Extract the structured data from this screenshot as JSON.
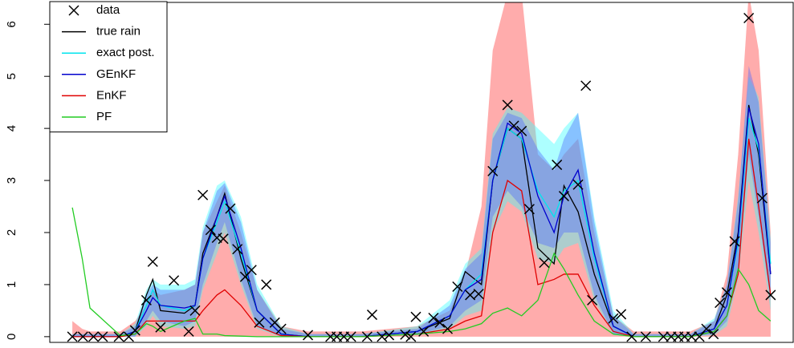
{
  "chart_data": {
    "type": "line",
    "xlim": [
      -2.2,
      103.2
    ],
    "ylim": [
      -0.11,
      6.42
    ],
    "yticks": [
      0,
      1,
      2,
      3,
      4,
      5,
      6
    ],
    "legend": "topleft",
    "x": [
      1,
      2.4,
      3.5,
      7.8,
      9.9,
      11.5,
      12.4,
      13.5,
      16.9,
      18.4,
      19.5,
      21.5,
      22.6,
      24.9,
      27.2,
      30.6,
      34.4,
      42,
      49.9,
      54.5,
      56.7,
      59,
      60.6,
      62.7,
      64.7,
      67,
      69.3,
      70.7,
      72.7,
      75,
      77.7,
      80.6,
      88.6,
      92,
      93.8,
      95.4,
      96.9,
      98.3,
      100
    ],
    "bands": [
      {
        "color": "#ff8080",
        "opacity": 0.65,
        "lower": [
          0,
          0,
          0,
          0,
          0,
          0,
          0,
          0,
          0,
          0,
          0,
          0,
          0,
          0,
          0,
          0,
          0,
          0,
          0,
          0,
          0,
          0,
          0,
          0,
          0,
          0,
          0,
          0,
          0,
          0,
          0,
          0,
          0,
          0,
          0,
          0,
          0,
          0,
          0
        ],
        "upper": [
          0.3,
          0.15,
          0.1,
          0.1,
          0.3,
          0.6,
          0.9,
          0.8,
          0.9,
          1.0,
          2.0,
          2.6,
          2.9,
          2.0,
          0.9,
          0.2,
          0.1,
          0.1,
          0.2,
          0.5,
          1.2,
          2.5,
          5.5,
          6.6,
          6.6,
          3.5,
          3.2,
          3.5,
          3.8,
          2.0,
          0.4,
          0.1,
          0.1,
          0.3,
          1.2,
          3.5,
          6.6,
          5.5,
          2.0
        ]
      },
      {
        "color": "#33ffff",
        "opacity": 0.4,
        "lower": [
          0,
          0,
          0,
          0,
          0,
          0.2,
          0.4,
          0.2,
          0.15,
          0.2,
          0.9,
          1.6,
          2.0,
          1.0,
          0.15,
          0,
          0,
          0,
          0.03,
          0.15,
          0.4,
          0.5,
          2.0,
          2.6,
          2.4,
          1.5,
          1.4,
          1.7,
          1.8,
          0.7,
          0.03,
          0,
          0,
          0.03,
          0.2,
          1.1,
          3.0,
          2.0,
          0.5
        ],
        "upper": [
          0.05,
          0.05,
          0.05,
          0.05,
          0.25,
          0.9,
          1.1,
          1.0,
          1.0,
          1.1,
          2.1,
          2.9,
          3.0,
          2.3,
          1.0,
          0.2,
          0.05,
          0.05,
          0.2,
          0.7,
          1.4,
          1.7,
          3.9,
          4.4,
          4.3,
          4.0,
          3.7,
          4.0,
          4.3,
          2.3,
          0.5,
          0.05,
          0.05,
          0.35,
          1.0,
          2.7,
          5.0,
          4.6,
          1.9
        ]
      },
      {
        "color": "#4d66ff",
        "opacity": 0.4,
        "lower": [
          0,
          0,
          0,
          0,
          0,
          0.3,
          0.5,
          0.3,
          0.2,
          0.3,
          1.0,
          1.8,
          2.2,
          1.1,
          0.2,
          0,
          0,
          0,
          0.05,
          0.2,
          0.5,
          0.7,
          2.3,
          2.8,
          2.5,
          1.8,
          1.7,
          2.0,
          2.0,
          0.8,
          0.05,
          0,
          0,
          0.05,
          0.3,
          1.3,
          3.5,
          2.3,
          0.7
        ],
        "upper": [
          0.05,
          0.05,
          0.05,
          0.05,
          0.2,
          0.8,
          1.0,
          0.9,
          0.9,
          1.0,
          2.0,
          2.8,
          2.95,
          2.2,
          0.9,
          0.15,
          0.05,
          0.05,
          0.15,
          0.6,
          1.3,
          1.6,
          3.8,
          4.3,
          4.2,
          3.6,
          3.2,
          3.8,
          4.3,
          2.2,
          0.4,
          0.05,
          0.05,
          0.3,
          1.0,
          2.6,
          5.2,
          4.5,
          1.8
        ]
      }
    ],
    "series": [
      {
        "name": "data",
        "marker": "x",
        "color": "#000000",
        "x": [
          1,
          2.5,
          4,
          5.3,
          7.6,
          9,
          9.9,
          11.5,
          12.4,
          13.5,
          15.4,
          17.5,
          18.4,
          19.5,
          20.6,
          21.5,
          22.4,
          23.4,
          24.4,
          25.5,
          26.4,
          27.5,
          28.5,
          29.7,
          30.6,
          34.4,
          37.6,
          38.5,
          39.5,
          40.5,
          42.8,
          43.5,
          44.9,
          45.9,
          48.2,
          49,
          49.7,
          50.8,
          52.2,
          53.1,
          54.2,
          55.6,
          57.4,
          58.6,
          60.6,
          62.7,
          63.6,
          64.7,
          65.8,
          67.9,
          69.7,
          70.7,
          72.7,
          73.8,
          74.7,
          77.7,
          78.8,
          80.3,
          82.3,
          84.8,
          85.9,
          86.9,
          87.8,
          88.8,
          89.9,
          90.9,
          91.9,
          92.8,
          93.8,
          94.9,
          96.9,
          98.8,
          100
        ],
        "values": [
          0,
          0,
          0,
          0,
          0,
          0,
          0.12,
          0.7,
          1.44,
          0.18,
          1.08,
          0.1,
          0.5,
          2.72,
          2.05,
          1.9,
          1.88,
          2.46,
          1.68,
          1.15,
          1.28,
          0.27,
          1.0,
          0.27,
          0.15,
          0.03,
          0,
          0,
          0,
          0,
          0,
          0.42,
          0,
          0.03,
          0.04,
          0,
          0.38,
          0.1,
          0.36,
          0.27,
          0.15,
          0.96,
          0.8,
          0.82,
          3.18,
          4.45,
          4.05,
          3.95,
          2.45,
          1.42,
          3.3,
          2.7,
          2.92,
          4.82,
          0.7,
          0.35,
          0.43,
          0,
          0,
          0,
          0,
          0,
          0,
          0,
          0,
          0.15,
          0.05,
          0.65,
          0.85,
          1.83,
          6.12,
          2.66,
          0.8
        ]
      },
      {
        "name": "true rain",
        "color": "#000000",
        "values": [
          0,
          0,
          0,
          0,
          0.1,
          0.8,
          1.1,
          0.5,
          0.45,
          0.6,
          1.6,
          2.3,
          2.75,
          1.5,
          0.5,
          0.05,
          0,
          0,
          0.1,
          0.35,
          1.25,
          1.0,
          3.0,
          4.0,
          3.8,
          1.7,
          1.4,
          2.9,
          2.4,
          1.2,
          0.2,
          0,
          0,
          0.15,
          0.8,
          2.0,
          4.45,
          3.5,
          1.2
        ]
      },
      {
        "name": "exact post.",
        "color": "#00e5ee",
        "values": [
          0,
          0,
          0,
          0,
          0.1,
          0.6,
          0.9,
          0.6,
          0.5,
          0.6,
          1.5,
          2.2,
          2.6,
          1.6,
          0.5,
          0.05,
          0,
          0,
          0.1,
          0.4,
          0.9,
          1.2,
          3.0,
          4.0,
          3.8,
          2.8,
          2.3,
          2.8,
          3.0,
          1.5,
          0.2,
          0,
          0,
          0.15,
          0.6,
          1.8,
          4.2,
          3.6,
          1.4
        ]
      },
      {
        "name": "GEnKF",
        "color": "#0000cd",
        "values": [
          0,
          0,
          0,
          0,
          0.1,
          0.5,
          0.75,
          0.6,
          0.55,
          0.6,
          1.5,
          2.3,
          2.7,
          1.7,
          0.5,
          0.05,
          0,
          0,
          0.1,
          0.4,
          0.9,
          1.1,
          3.0,
          4.1,
          3.9,
          2.7,
          2.0,
          2.7,
          3.2,
          1.6,
          0.2,
          0,
          0,
          0.15,
          0.6,
          1.9,
          4.4,
          3.7,
          1.2
        ]
      },
      {
        "name": "EnKF",
        "color": "#e00000",
        "values": [
          0,
          0,
          0,
          0,
          0.05,
          0.3,
          0.3,
          0.3,
          0.3,
          0.3,
          0.5,
          0.8,
          0.9,
          0.6,
          0.2,
          0.02,
          0,
          0,
          0.05,
          0.15,
          0.3,
          0.4,
          2.0,
          3.0,
          2.8,
          1.0,
          1.1,
          1.2,
          1.2,
          0.6,
          0.1,
          0,
          0,
          0.1,
          0.4,
          1.2,
          3.8,
          2.5,
          0.8
        ]
      },
      {
        "name": "PF",
        "color": "#22cc22",
        "values": [
          2.48,
          1.5,
          0.55,
          0.02,
          0.05,
          0.25,
          0.2,
          0.1,
          0.3,
          0.35,
          0.05,
          0.05,
          0.02,
          0.01,
          0,
          0,
          0,
          0,
          0.05,
          0.1,
          0.15,
          0.25,
          0.45,
          0.55,
          0.4,
          0.7,
          1.6,
          1.3,
          0.8,
          0.3,
          0.05,
          0,
          0,
          0.1,
          0.4,
          1.3,
          1.0,
          0.5,
          0.3
        ]
      }
    ]
  }
}
